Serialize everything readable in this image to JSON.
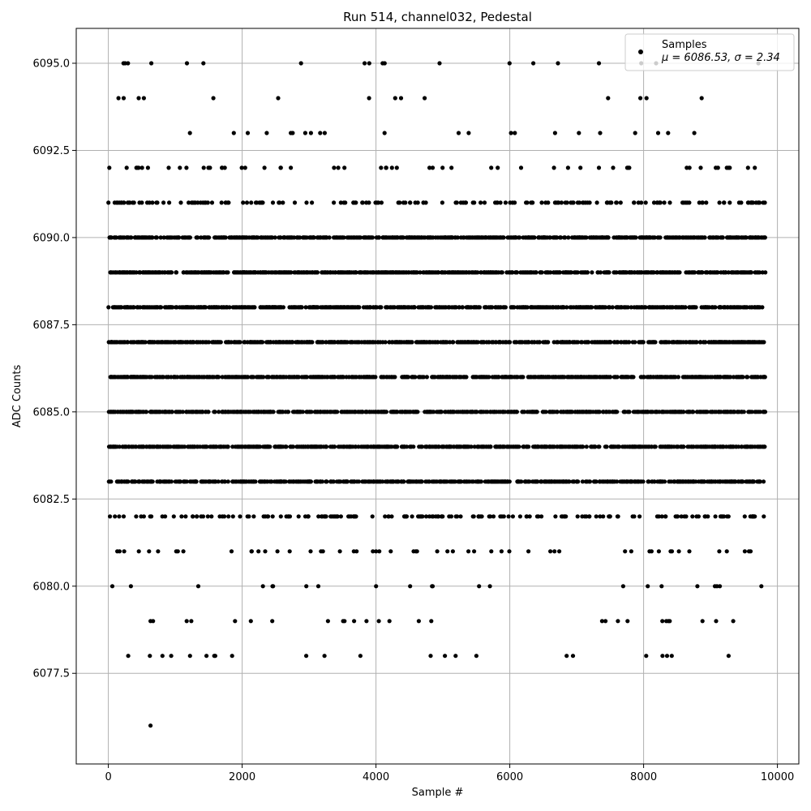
{
  "chart_data": {
    "type": "scatter",
    "title": "Run 514, channel032, Pedestal",
    "xlabel": "Sample #",
    "ylabel": "ADC Counts",
    "xlim": [
      -480,
      10320
    ],
    "ylim": [
      6074.9,
      6096.0
    ],
    "xticks": [
      0,
      2000,
      4000,
      6000,
      8000,
      10000
    ],
    "xtick_labels": [
      "0",
      "2000",
      "4000",
      "6000",
      "8000",
      "10000"
    ],
    "yticks": [
      6077.5,
      6080.0,
      6082.5,
      6085.0,
      6087.5,
      6090.0,
      6092.5,
      6095.0
    ],
    "ytick_labels": [
      "6077.5",
      "6080.0",
      "6082.5",
      "6085.0",
      "6087.5",
      "6090.0",
      "6092.5",
      "6095.0"
    ],
    "grid": true,
    "legend": {
      "position": "top-right",
      "series_label": "Samples",
      "stats_label": "μ = 6086.53, σ = 2.34"
    },
    "series": [
      {
        "name": "Samples",
        "color": "#000000",
        "marker": "circle",
        "sample_range": [
          0,
          9820
        ],
        "value_range": [
          6076,
          6095
        ],
        "mean": 6086.53,
        "std": 2.34,
        "dense_levels": [
          6083,
          6084,
          6085,
          6086,
          6087,
          6088,
          6089,
          6090
        ],
        "medium_levels": [
          6082,
          6091
        ],
        "sparse_levels": [
          6078,
          6079,
          6080,
          6081,
          6092,
          6093,
          6094,
          6095
        ],
        "outliers": [
          {
            "x": 630,
            "y": 6076
          },
          {
            "x": 2880,
            "y": 6095
          },
          {
            "x": 3830,
            "y": 6095
          },
          {
            "x": 4100,
            "y": 6095
          },
          {
            "x": 4130,
            "y": 6095
          },
          {
            "x": 6720,
            "y": 6095
          },
          {
            "x": 620,
            "y": 6078
          },
          {
            "x": 940,
            "y": 6078
          },
          {
            "x": 1220,
            "y": 6078
          },
          {
            "x": 1850,
            "y": 6078
          },
          {
            "x": 5030,
            "y": 6078
          },
          {
            "x": 5190,
            "y": 6078
          },
          {
            "x": 8350,
            "y": 6078
          },
          {
            "x": 8420,
            "y": 6078
          },
          {
            "x": 9270,
            "y": 6078
          },
          {
            "x": 630,
            "y": 6079
          },
          {
            "x": 2130,
            "y": 6079
          },
          {
            "x": 2450,
            "y": 6079
          },
          {
            "x": 3530,
            "y": 6079
          },
          {
            "x": 4640,
            "y": 6079
          },
          {
            "x": 7380,
            "y": 6079
          },
          {
            "x": 7430,
            "y": 6079
          },
          {
            "x": 7760,
            "y": 6079
          },
          {
            "x": 8280,
            "y": 6079
          },
          {
            "x": 8340,
            "y": 6079
          },
          {
            "x": 8390,
            "y": 6079
          },
          {
            "x": 8880,
            "y": 6079
          },
          {
            "x": 9340,
            "y": 6079
          }
        ]
      }
    ]
  }
}
